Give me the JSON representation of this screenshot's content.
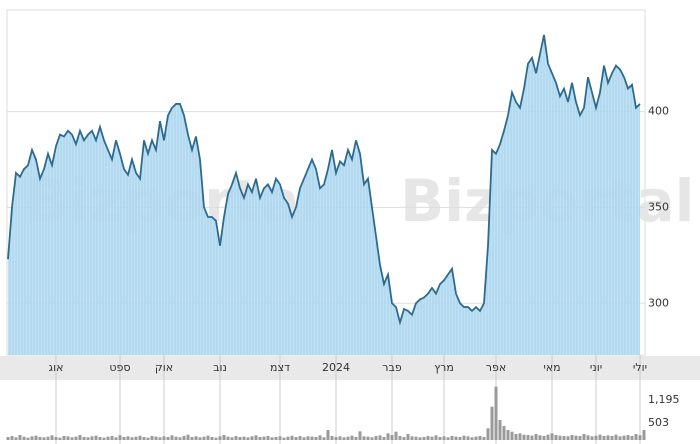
{
  "chart_data": [
    {
      "type": "area",
      "name": "price",
      "watermark": "Bizportal",
      "color": "#2d6b8e",
      "fill": "#aed8f2",
      "xlim": [
        0,
        159
      ],
      "ylim": [
        273,
        453
      ],
      "yticks": [
        300,
        350,
        400
      ],
      "grid": true,
      "xticks": [
        {
          "value": 12,
          "label": "אוג"
        },
        {
          "value": 28,
          "label": "ספט"
        },
        {
          "value": 39,
          "label": "אוק"
        },
        {
          "value": 53,
          "label": "נוב"
        },
        {
          "value": 68,
          "label": "דצמ"
        },
        {
          "value": 82,
          "label": "2024"
        },
        {
          "value": 96,
          "label": "פבר"
        },
        {
          "value": 109,
          "label": "מרץ"
        },
        {
          "value": 122,
          "label": "אפר"
        },
        {
          "value": 136,
          "label": "מאי"
        },
        {
          "value": 147,
          "label": "יוני"
        },
        {
          "value": 158,
          "label": "יולי"
        }
      ],
      "values": [
        323,
        350,
        368,
        366,
        370,
        372,
        380,
        375,
        365,
        370,
        378,
        372,
        382,
        388,
        387,
        390,
        388,
        383,
        390,
        385,
        388,
        390,
        385,
        392,
        385,
        380,
        375,
        385,
        378,
        370,
        367,
        375,
        368,
        365,
        385,
        378,
        385,
        380,
        395,
        385,
        398,
        402,
        404,
        404,
        398,
        388,
        380,
        387,
        375,
        350,
        345,
        345,
        343,
        330,
        345,
        357,
        362,
        368,
        360,
        355,
        362,
        358,
        365,
        355,
        360,
        362,
        358,
        365,
        362,
        355,
        352,
        345,
        350,
        360,
        365,
        370,
        375,
        370,
        360,
        362,
        370,
        380,
        368,
        374,
        372,
        380,
        375,
        385,
        378,
        362,
        365,
        350,
        335,
        320,
        310,
        315,
        300,
        298,
        290,
        297,
        296,
        294,
        300,
        302,
        303,
        305,
        308,
        305,
        310,
        312,
        315,
        318,
        305,
        300,
        298,
        298,
        296,
        298,
        296,
        300,
        330,
        380,
        378,
        383,
        390,
        398,
        410,
        405,
        402,
        412,
        425,
        428,
        420,
        430,
        440,
        425,
        420,
        415,
        408,
        412,
        405,
        415,
        405,
        398,
        402,
        418,
        410,
        402,
        410,
        424,
        415,
        420,
        424,
        422,
        418,
        412,
        414,
        402,
        404
      ]
    },
    {
      "type": "bar",
      "name": "volume",
      "color": "#9a9a9a",
      "xlim": [
        0,
        159
      ],
      "ylim": [
        0,
        1650
      ],
      "yticks": [
        {
          "value": 1195,
          "label": "1,195"
        },
        503
      ],
      "values": [
        90,
        120,
        80,
        150,
        100,
        70,
        110,
        130,
        90,
        80,
        100,
        140,
        90,
        70,
        120,
        110,
        80,
        100,
        150,
        90,
        80,
        110,
        130,
        90,
        70,
        100,
        120,
        80,
        140,
        90,
        110,
        80,
        100,
        130,
        90,
        70,
        120,
        100,
        80,
        110,
        90,
        140,
        100,
        80,
        120,
        160,
        90,
        110,
        80,
        100,
        130,
        90,
        70,
        110,
        150,
        100,
        80,
        120,
        90,
        100,
        80,
        110,
        140,
        90,
        100,
        120,
        80,
        90,
        110,
        70,
        100,
        130,
        90,
        120,
        80,
        110,
        100,
        90,
        140,
        80,
        300,
        120,
        90,
        110,
        80,
        100,
        130,
        90,
        260,
        110,
        100,
        80,
        120,
        140,
        90,
        200,
        150,
        250,
        120,
        90,
        180,
        110,
        100,
        80,
        90,
        120,
        100,
        140,
        90,
        110,
        80,
        120,
        100,
        90,
        130,
        110,
        80,
        100,
        120,
        90,
        350,
        1000,
        1600,
        600,
        420,
        300,
        250,
        180,
        200,
        160,
        150,
        130,
        180,
        140,
        120,
        160,
        200,
        150,
        130,
        120,
        110,
        150,
        130,
        120,
        180,
        140,
        110,
        130,
        160,
        120,
        140,
        120,
        160,
        110,
        130,
        150,
        120,
        180,
        140,
        300
      ]
    }
  ]
}
